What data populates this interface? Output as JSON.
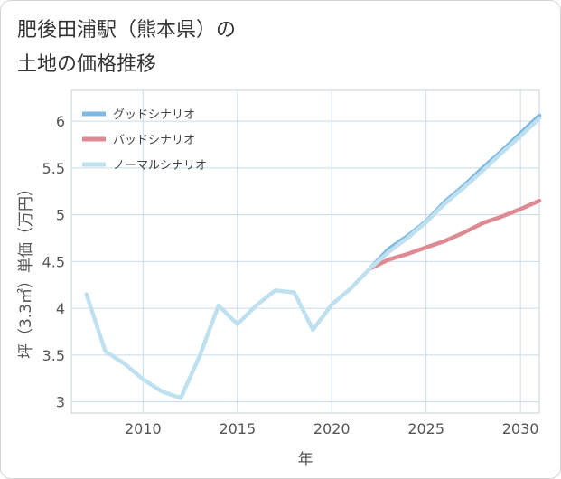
{
  "page": {
    "title_line1": "肥後田浦駅（熊本県）の",
    "title_line2": "土地の価格推移"
  },
  "colors": {
    "good": "#7db9e3",
    "bad": "#dd8a92",
    "normal": "#bfe0ef",
    "grid": "#c9dbe8",
    "tick_text": "#555555",
    "plot_bg": "#ffffff",
    "border": "#c7d0d6"
  },
  "chart_data": {
    "type": "line",
    "title": "肥後田浦駅（熊本県）の土地の価格推移",
    "xlabel": "年",
    "ylabel": "坪（3.3㎡）単価（万円）",
    "xlim": [
      2006.2,
      2031
    ],
    "ylim": [
      2.88,
      6.33
    ],
    "xticks": [
      2010,
      2015,
      2020,
      2025,
      2030
    ],
    "yticks": [
      3,
      3.5,
      4,
      4.5,
      5,
      5.5,
      6
    ],
    "ytick_labels": [
      "3",
      "3.5",
      "4",
      "4.5",
      "5",
      "5.5",
      "6"
    ],
    "grid": true,
    "legend_position": "top-left",
    "series": [
      {
        "name": "グッドシナリオ",
        "color": "#7db9e3",
        "x": [
          2022,
          2023,
          2024,
          2025,
          2026,
          2027,
          2028,
          2029,
          2030,
          2031
        ],
        "y": [
          4.42,
          4.63,
          4.77,
          4.93,
          5.14,
          5.31,
          5.5,
          5.68,
          5.87,
          6.06
        ]
      },
      {
        "name": "バッドシナリオ",
        "color": "#dd8a92",
        "x": [
          2022,
          2023,
          2024,
          2025,
          2026,
          2027,
          2028,
          2029,
          2030,
          2031
        ],
        "y": [
          4.42,
          4.52,
          4.58,
          4.65,
          4.72,
          4.81,
          4.91,
          4.98,
          5.06,
          5.15
        ]
      },
      {
        "name": "ノーマルシナリオ",
        "color": "#bfe0ef",
        "x": [
          2007,
          2008,
          2009,
          2010,
          2011,
          2012,
          2013,
          2014,
          2015,
          2016,
          2017,
          2018,
          2019,
          2020,
          2021,
          2022,
          2023,
          2024,
          2025,
          2026,
          2027,
          2028,
          2029,
          2030,
          2031
        ],
        "y": [
          4.15,
          3.54,
          3.41,
          3.24,
          3.11,
          3.04,
          3.49,
          4.03,
          3.83,
          4.03,
          4.19,
          4.17,
          3.77,
          4.04,
          4.21,
          4.42,
          4.6,
          4.75,
          4.92,
          5.12,
          5.29,
          5.47,
          5.66,
          5.84,
          6.03
        ]
      }
    ]
  }
}
